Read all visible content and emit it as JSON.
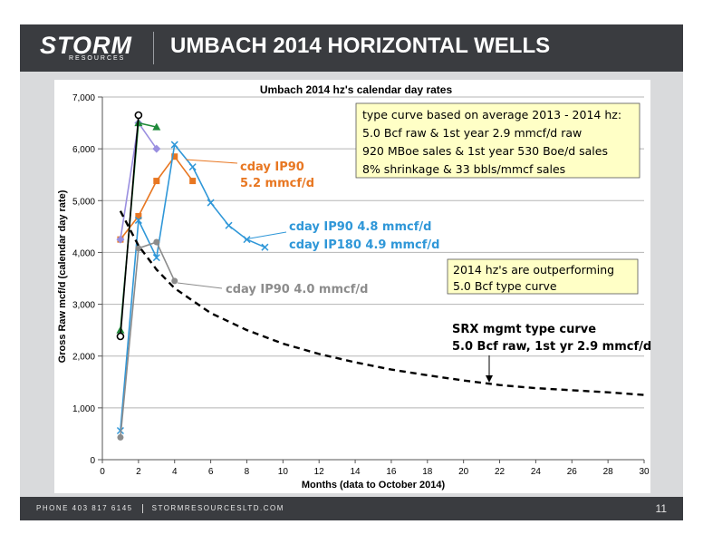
{
  "header": {
    "logo": "STORM",
    "logo_sub": "RESOURCES",
    "title": "UMBACH 2014 HORIZONTAL WELLS"
  },
  "footer": {
    "phone": "PHONE 403 817 6145",
    "website": "STORMRESOURCESLTD.COM",
    "page_number": "11"
  },
  "colors": {
    "orange": "#e87722",
    "blue": "#2f97d8",
    "gray": "#8c8c8c",
    "black": "#000000",
    "purple_line": "#9a8fe0",
    "green": "#1f8a3a",
    "note_bg": "#ffffc6"
  },
  "chart_data": {
    "type": "line",
    "title": "Umbach 2014 hz's calendar day rates",
    "xlabel": "Months (data to October 2014)",
    "ylabel": "Gross Raw mcf/d (calendar day rate)",
    "xlim": [
      0,
      30
    ],
    "ylim": [
      0,
      7000
    ],
    "xticks": [
      0,
      2,
      4,
      6,
      8,
      10,
      12,
      14,
      16,
      18,
      20,
      22,
      24,
      26,
      28,
      30
    ],
    "yticks": [
      0,
      1000,
      2000,
      3000,
      4000,
      5000,
      6000,
      7000
    ],
    "ytick_labels": [
      "0",
      "1,000",
      "2,000",
      "3,000",
      "4,000",
      "5,000",
      "6,000",
      "7,000"
    ],
    "grid": "horizontal",
    "series": [
      {
        "color": "#e87722",
        "marker": "square",
        "x": [
          1,
          2,
          3,
          4,
          5
        ],
        "y": [
          4250,
          4700,
          5380,
          5850,
          5380
        ]
      },
      {
        "color": "#2f97d8",
        "marker": "x",
        "x": [
          1,
          2,
          3,
          4,
          5,
          6,
          7,
          8,
          9
        ],
        "y": [
          560,
          4620,
          3900,
          6080,
          5650,
          4960,
          4520,
          4250,
          4100
        ]
      },
      {
        "color": "#8c8c8c",
        "marker": "circle",
        "x": [
          1,
          2,
          3,
          4
        ],
        "y": [
          430,
          4080,
          4200,
          3450
        ]
      },
      {
        "color": "#9a8fe0",
        "marker": "diamond",
        "x": [
          1,
          2,
          3
        ],
        "y": [
          4250,
          6500,
          6000
        ]
      },
      {
        "color": "#1f8a3a",
        "marker": "triangle",
        "x": [
          1,
          2,
          3
        ],
        "y": [
          2500,
          6500,
          6420
        ]
      },
      {
        "color": "#000000",
        "marker": "circle-open",
        "x": [
          1,
          2
        ],
        "y": [
          2380,
          6650
        ]
      },
      {
        "color": "#000000",
        "marker": "dashed",
        "x": [
          1,
          2,
          3,
          4,
          6,
          8,
          10,
          12,
          14,
          16,
          18,
          20,
          22,
          24,
          26,
          28,
          30
        ],
        "y": [
          4800,
          4130,
          3670,
          3310,
          2830,
          2500,
          2240,
          2040,
          1880,
          1740,
          1630,
          1530,
          1440,
          1380,
          1340,
          1300,
          1250
        ]
      }
    ],
    "annotations": {
      "orange_label_1": "cday IP90",
      "orange_label_2": "5.2 mmcf/d",
      "blue_label_1": "cday IP90 4.8 mmcf/d",
      "blue_label_2": "cday IP180 4.9 mmcf/d",
      "gray_label": "cday IP90 4.0 mmcf/d",
      "srx_label_1": "SRX mgmt type curve",
      "srx_label_2": "5.0 Bcf raw, 1st yr 2.9 mmcf/d",
      "note1": [
        "type curve based on average 2013 - 2014 hz:",
        "5.0 Bcf raw & 1st year 2.9 mmcf/d raw",
        "920 MBoe sales & 1st year 530 Boe/d sales",
        "8% shrinkage & 33 bbls/mmcf sales"
      ],
      "note2": [
        "2014 hz's are outperforming",
        "5.0 Bcf type curve"
      ]
    }
  }
}
